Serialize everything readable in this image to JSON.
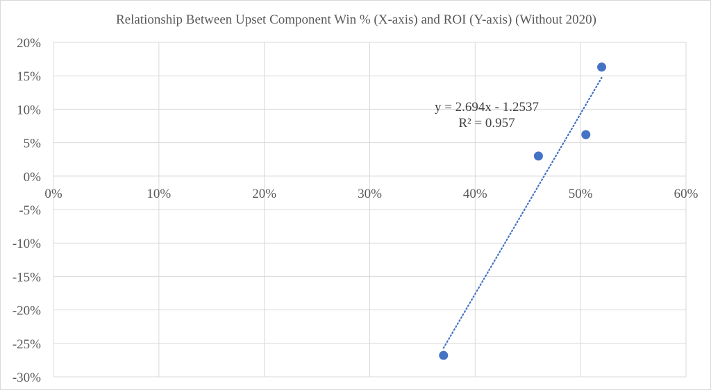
{
  "chart_data": {
    "type": "scatter",
    "title": "Relationship Between Upset Component Win % (X-axis) and ROI (Y-axis) (Without 2020)",
    "xlabel": "",
    "ylabel": "",
    "xlim": [
      0,
      0.6
    ],
    "ylim": [
      -0.3,
      0.2
    ],
    "x_ticks": [
      0,
      0.1,
      0.2,
      0.3,
      0.4,
      0.5,
      0.6
    ],
    "y_ticks": [
      0.2,
      0.15,
      0.1,
      0.05,
      0,
      -0.05,
      -0.1,
      -0.15,
      -0.2,
      -0.25,
      -0.3
    ],
    "x_tick_labels": [
      "0%",
      "10%",
      "20%",
      "30%",
      "40%",
      "50%",
      "60%"
    ],
    "y_tick_labels": [
      "20%",
      "15%",
      "10%",
      "5%",
      "0%",
      "-5%",
      "-10%",
      "-15%",
      "-20%",
      "-25%",
      "-30%"
    ],
    "grid": true,
    "points": [
      {
        "x": 0.37,
        "y": -0.268
      },
      {
        "x": 0.46,
        "y": 0.03
      },
      {
        "x": 0.505,
        "y": 0.062
      },
      {
        "x": 0.52,
        "y": 0.163
      }
    ],
    "trendline": {
      "type": "linear",
      "slope": 2.694,
      "intercept": -1.2537,
      "x_range": [
        0.37,
        0.52
      ],
      "equation_label": "y = 2.694x - 1.2537",
      "r2_label": "R² = 0.957"
    },
    "colors": {
      "marker": "#4472c4",
      "trendline": "#4472c4",
      "grid": "#d9d9d9",
      "text": "#595959"
    }
  }
}
